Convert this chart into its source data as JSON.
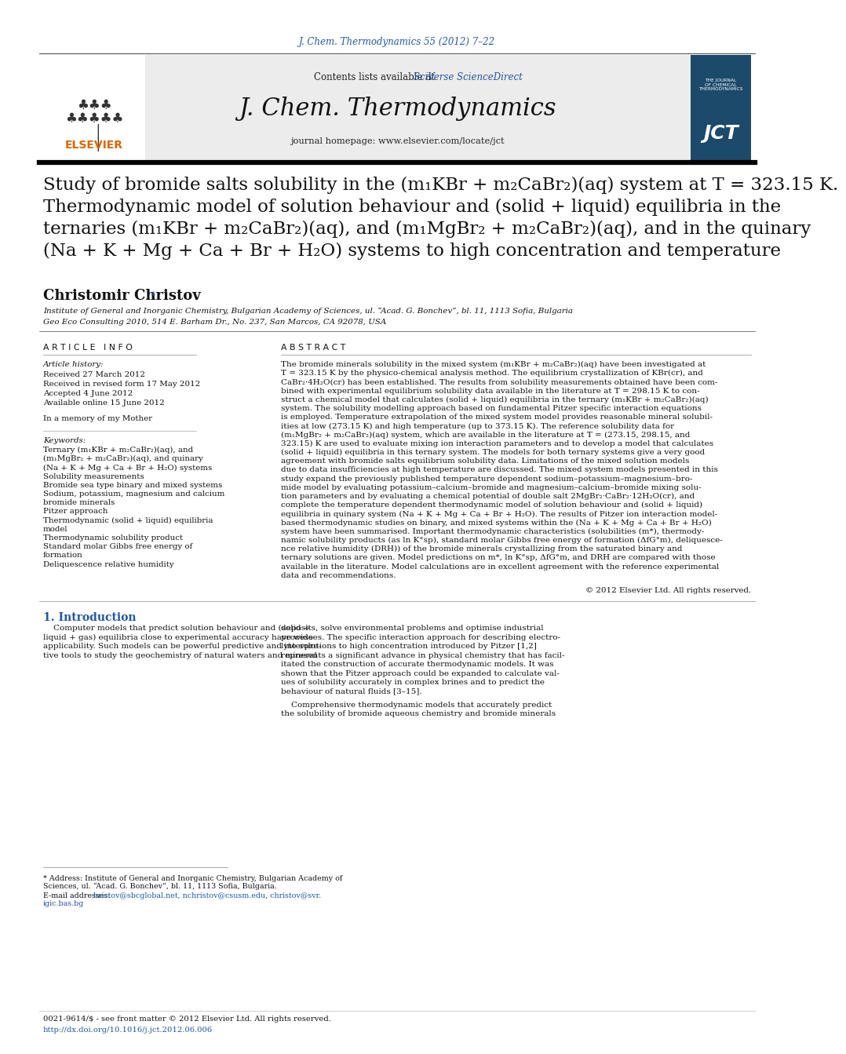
{
  "journal_ref": "J. Chem. Thermodynamics 55 (2012) 7–22",
  "journal_ref_color": "#2255aa",
  "header_bg_color": "#e8e8e8",
  "contents_text": "Contents lists available at ",
  "sciverse_text": "SciVerse ScienceDirect",
  "sciverse_color": "#2255aa",
  "journal_name": "J. Chem. Thermodynamics",
  "journal_homepage": "journal homepage: www.elsevier.com/locate/jct",
  "title_full": "Study of bromide salts solubility in the (m₁KBr + m₂CaBr₂)(aq) system at T = 323.15 K.\nThermodynamic model of solution behaviour and (solid + liquid) equilibria in the\nternaries (m₁KBr + m₂CaBr₂)(aq), and (m₁MgBr₂ + m₂CaBr₂)(aq), and in the quinary\n(Na + K + Mg + Ca + Br + H₂O) systems to high concentration and temperature",
  "author": "Christomir Christov",
  "author_star": "*",
  "affiliation1": "Institute of General and Inorganic Chemistry, Bulgarian Academy of Sciences, ul. “Acad. G. Bonchev”, bl. 11, 1113 Sofia, Bulgaria",
  "affiliation2": "Geo Eco Consulting 2010, 514 E. Barham Dr., No. 237, San Marcos, CA 92078, USA",
  "article_info_header": "A R T I C L E   I N F O",
  "abstract_header": "A B S T R A C T",
  "article_history_label": "Article history:",
  "received1": "Received 27 March 2012",
  "received2": "Received in revised form 17 May 2012",
  "accepted": "Accepted 4 June 2012",
  "available": "Available online 15 June 2012",
  "dedication": "In a memory of my Mother",
  "keywords_label": "Keywords:",
  "keywords": [
    "Ternary (m₁KBr + m₂CaBr₂)(aq), and",
    "(m₁MgBr₂ + m₂CaBr₂)(aq), and quinary",
    "(Na + K + Mg + Ca + Br + H₂O) systems",
    "Solubility measurements",
    "Bromide sea type binary and mixed systems",
    "Sodium, potassium, magnesium and calcium",
    "bromide minerals",
    "Pitzer approach",
    "Thermodynamic (solid + liquid) equilibria",
    "model",
    "Thermodynamic solubility product",
    "Standard molar Gibbs free energy of",
    "formation",
    "Deliquescence relative humidity"
  ],
  "abstract_text_lines": [
    "The bromide minerals solubility in the mixed system (m₁KBr + m₂CaBr₂)(aq) have been investigated at",
    "T = 323.15 K by the physico-chemical analysis method. The equilibrium crystallization of KBr(cr), and",
    "CaBr₂·4H₂O(cr) has been established. The results from solubility measurements obtained have been com-",
    "bined with experimental equilibrium solubility data available in the literature at T = 298.15 K to con-",
    "struct a chemical model that calculates (solid + liquid) equilibria in the ternary (m₁KBr + m₂CaBr₂)(aq)",
    "system. The solubility modelling approach based on fundamental Pitzer specific interaction equations",
    "is employed. Temperature extrapolation of the mixed system model provides reasonable mineral solubil-",
    "ities at low (273.15 K) and high temperature (up to 373.15 K). The reference solubility data for",
    "(m₁MgBr₂ + m₂CaBr₂)(aq) system, which are available in the literature at T = (273.15, 298.15, and",
    "323.15) K are used to evaluate mixing ion interaction parameters and to develop a model that calculates",
    "(solid + liquid) equilibria in this ternary system. The models for both ternary systems give a very good",
    "agreement with bromide salts equilibrium solubility data. Limitations of the mixed solution models",
    "due to data insufficiencies at high temperature are discussed. The mixed system models presented in this",
    "study expand the previously published temperature dependent sodium–potassium–magnesium–bro-",
    "mide model by evaluating potassium–calcium–bromide and magnesium–calcium–bromide mixing solu-",
    "tion parameters and by evaluating a chemical potential of double salt 2MgBr₂·CaBr₂·12H₂O(cr), and",
    "complete the temperature dependent thermodynamic model of solution behaviour and (solid + liquid)",
    "equilibria in quinary system (Na + K + Mg + Ca + Br + H₂O). The results of Pitzer ion interaction model-",
    "based thermodynamic studies on binary, and mixed systems within the (Na + K + Mg + Ca + Br + H₂O)",
    "system have been summarised. Important thermodynamic characteristics (solubilities (m*), thermody-",
    "namic solubility products (as ln K°sp), standard molar Gibbs free energy of formation (ΔfG°m), deliquesce-",
    "nce relative humidity (DRH)) of the bromide minerals crystallizing from the saturated binary and",
    "ternary solutions are given. Model predictions on m*, ln K°sp, ΔfG°m, and DRH are compared with those",
    "available in the literature. Model calculations are in excellent agreement with the reference experimental",
    "data and recommendations."
  ],
  "copyright": "© 2012 Elsevier Ltd. All rights reserved.",
  "intro_header": "1. Introduction",
  "intro_col1_lines": [
    "    Computer models that predict solution behaviour and (solid +",
    "liquid + gas) equilibria close to experimental accuracy have wide",
    "applicability. Such models can be powerful predictive and interpre-",
    "tive tools to study the geochemistry of natural waters and mineral"
  ],
  "intro_col2_lines": [
    "deposits, solve environmental problems and optimise industrial",
    "processes. The specific interaction approach for describing electro-",
    "lyte solutions to high concentration introduced by Pitzer [1,2]",
    "represents a significant advance in physical chemistry that has facil-",
    "itated the construction of accurate thermodynamic models. It was",
    "shown that the Pitzer approach could be expanded to calculate val-",
    "ues of solubility accurately in complex brines and to predict the",
    "behaviour of natural fluids [3–15].",
    "",
    "    Comprehensive thermodynamic models that accurately predict",
    "the solubility of bromide aqueous chemistry and bromide minerals"
  ],
  "footnote_line1": "* Address: Institute of General and Inorganic Chemistry, Bulgarian Academy of",
  "footnote_line2": "Sciences, ul. “Acad. G. Bonchev”, bl. 11, 1113 Sofia, Bulgaria.",
  "footnote_email_label": "E-mail addresses: ",
  "footnote_email1": "hristov@sbcglobal.net",
  "footnote_email_sep": ", ",
  "footnote_email2": "nchristov@csusm.edu",
  "footnote_email_sep2": ", ",
  "footnote_email3": "christov@svr.",
  "footnote_email_line2": "igic.bas.bg",
  "footnote_emails_color": "#2255aa",
  "bottom_issn": "0021-9614/$ - see front matter © 2012 Elsevier Ltd. All rights reserved.",
  "bottom_doi": "http://dx.doi.org/10.1016/j.jct.2012.06.006",
  "bottom_doi_color": "#2255aa",
  "elsevier_color": "#dd6600",
  "bg_white": "#ffffff",
  "text_black": "#000000",
  "link_blue": "#2255aa"
}
